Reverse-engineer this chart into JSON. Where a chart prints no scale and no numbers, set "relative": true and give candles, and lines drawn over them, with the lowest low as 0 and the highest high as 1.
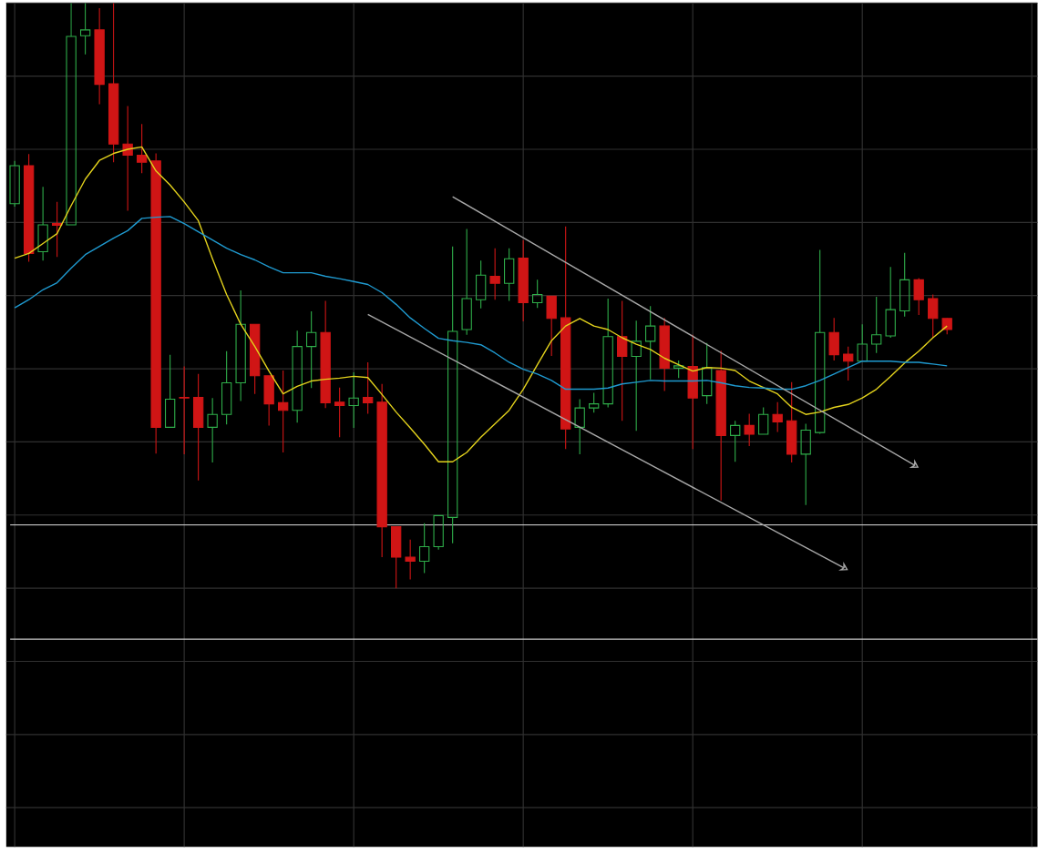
{
  "chart_data": {
    "type": "candlestick",
    "relative": true,
    "grid": true,
    "categories": [
      null,
      null,
      null,
      null,
      null,
      null,
      null,
      null,
      null,
      null,
      null,
      null,
      null,
      null,
      null,
      null,
      null,
      null,
      null,
      null,
      null,
      null,
      null,
      null,
      null,
      null,
      null,
      null,
      null,
      null,
      null,
      null,
      null,
      null,
      null,
      null,
      null,
      null,
      null,
      null,
      null,
      null,
      null,
      null,
      null,
      null,
      null,
      null,
      null,
      null,
      null,
      null,
      null,
      null,
      null,
      null,
      null,
      null,
      null,
      null,
      null,
      null,
      null,
      null,
      null,
      null,
      null
    ],
    "ohlc": [
      [
        0.657,
        0.73,
        0.652,
        0.722
      ],
      [
        0.722,
        0.742,
        0.558,
        0.572
      ],
      [
        0.575,
        0.686,
        0.56,
        0.621
      ],
      [
        0.623,
        0.66,
        0.566,
        0.62
      ],
      [
        0.621,
        1,
        0.621,
        0.943
      ],
      [
        0.944,
        1,
        0.912,
        0.954
      ],
      [
        0.954,
        0.991,
        0.827,
        0.861
      ],
      [
        0.862,
        1,
        0.728,
        0.759
      ],
      [
        0.759,
        0.824,
        0.645,
        0.74
      ],
      [
        0.74,
        0.793,
        0.709,
        0.728
      ],
      [
        0.73,
        0.743,
        0.23,
        0.275
      ],
      [
        0.275,
        0.399,
        0.275,
        0.323
      ],
      [
        0.326,
        0.379,
        0.229,
        0.325
      ],
      [
        0.326,
        0.366,
        0.184,
        0.275
      ],
      [
        0.275,
        0.325,
        0.215,
        0.297
      ],
      [
        0.297,
        0.405,
        0.28,
        0.351
      ],
      [
        0.351,
        0.509,
        0.32,
        0.451
      ],
      [
        0.451,
        0.451,
        0.332,
        0.363
      ],
      [
        0.363,
        0.363,
        0.278,
        0.315
      ],
      [
        0.317,
        0.372,
        0.232,
        0.304
      ],
      [
        0.304,
        0.44,
        0.283,
        0.413
      ],
      [
        0.413,
        0.473,
        0.342,
        0.437
      ],
      [
        0.437,
        0.491,
        0.308,
        0.317
      ],
      [
        0.318,
        0.343,
        0.258,
        0.312
      ],
      [
        0.312,
        0.369,
        0.274,
        0.325
      ],
      [
        0.326,
        0.386,
        0.298,
        0.317
      ],
      [
        0.318,
        0.349,
        0.053,
        0.105
      ],
      [
        0.105,
        0.105,
        0,
        0.053
      ],
      [
        0.053,
        0.083,
        0.015,
        0.046
      ],
      [
        0.046,
        0.111,
        0.026,
        0.071
      ],
      [
        0.071,
        0.124,
        0.066,
        0.124
      ],
      [
        0.121,
        0.584,
        0.077,
        0.439
      ],
      [
        0.442,
        0.614,
        0.433,
        0.495
      ],
      [
        0.493,
        0.56,
        0.478,
        0.535
      ],
      [
        0.533,
        0.581,
        0.493,
        0.521
      ],
      [
        0.521,
        0.581,
        0.491,
        0.563
      ],
      [
        0.564,
        0.595,
        0.456,
        0.488
      ],
      [
        0.488,
        0.527,
        0.479,
        0.502
      ],
      [
        0.499,
        0.499,
        0.397,
        0.461
      ],
      [
        0.462,
        0.618,
        0.238,
        0.272
      ],
      [
        0.275,
        0.323,
        0.229,
        0.308
      ],
      [
        0.308,
        0.334,
        0.3,
        0.315
      ],
      [
        0.315,
        0.495,
        0.309,
        0.43
      ],
      [
        0.43,
        0.491,
        0.286,
        0.396
      ],
      [
        0.396,
        0.457,
        0.269,
        0.422
      ],
      [
        0.422,
        0.482,
        0.357,
        0.448
      ],
      [
        0.448,
        0.462,
        0.337,
        0.376
      ],
      [
        0.376,
        0.389,
        0.359,
        0.38
      ],
      [
        0.379,
        0.433,
        0.238,
        0.325
      ],
      [
        0.329,
        0.419,
        0.315,
        0.377
      ],
      [
        0.372,
        0.406,
        0.15,
        0.261
      ],
      [
        0.261,
        0.286,
        0.216,
        0.278
      ],
      [
        0.278,
        0.298,
        0.243,
        0.263
      ],
      [
        0.263,
        0.309,
        0.263,
        0.297
      ],
      [
        0.297,
        0.318,
        0.267,
        0.284
      ],
      [
        0.286,
        0.352,
        0.215,
        0.229
      ],
      [
        0.229,
        0.281,
        0.142,
        0.27
      ],
      [
        0.266,
        0.578,
        0.264,
        0.437
      ],
      [
        0.437,
        0.462,
        0.389,
        0.399
      ],
      [
        0.4,
        0.413,
        0.355,
        0.388
      ],
      [
        0.388,
        0.451,
        0.388,
        0.417
      ],
      [
        0.417,
        0.498,
        0.402,
        0.433
      ],
      [
        0.431,
        0.549,
        0.428,
        0.476
      ],
      [
        0.474,
        0.573,
        0.464,
        0.527
      ],
      [
        0.527,
        0.53,
        0.467,
        0.493
      ],
      [
        0.495,
        0.502,
        0.428,
        0.461
      ],
      [
        0.461,
        0.462,
        0.434,
        0.442
      ]
    ],
    "colors": [
      "#2fae4a",
      "#d01515",
      "#2fae4a",
      "#d01515",
      "#2fae4a",
      "#2fae4a",
      "#d01515",
      "#d01515",
      "#d01515",
      "#d01515",
      "#d01515",
      "#2fae4a",
      "#d01515",
      "#d01515",
      "#2fae4a",
      "#2fae4a",
      "#2fae4a",
      "#d01515",
      "#d01515",
      "#d01515",
      "#2fae4a",
      "#2fae4a",
      "#d01515",
      "#d01515",
      "#2fae4a",
      "#d01515",
      "#d01515",
      "#d01515",
      "#d01515",
      "#2fae4a",
      "#2fae4a",
      "#2fae4a",
      "#2fae4a",
      "#2fae4a",
      "#d01515",
      "#2fae4a",
      "#d01515",
      "#2fae4a",
      "#d01515",
      "#d01515",
      "#2fae4a",
      "#2fae4a",
      "#2fae4a",
      "#d01515",
      "#2fae4a",
      "#2fae4a",
      "#d01515",
      "#2fae4a",
      "#d01515",
      "#2fae4a",
      "#d01515",
      "#2fae4a",
      "#d01515",
      "#2fae4a",
      "#d01515",
      "#d01515",
      "#2fae4a",
      "#2fae4a",
      "#d01515",
      "#d01515",
      "#2fae4a",
      "#2fae4a",
      "#2fae4a",
      "#2fae4a",
      "#d01515",
      "#d01515",
      "#d01515"
    ],
    "series": [
      {
        "type": "line",
        "color": "#e3d21c",
        "values": [
          0.564,
          0.572,
          0.589,
          0.606,
          0.654,
          0.699,
          0.731,
          0.743,
          0.75,
          0.754,
          0.713,
          0.689,
          0.66,
          0.628,
          0.563,
          0.502,
          0.451,
          0.413,
          0.371,
          0.332,
          0.345,
          0.354,
          0.357,
          0.359,
          0.362,
          0.36,
          0.331,
          0.301,
          0.274,
          0.246,
          0.216,
          0.216,
          0.232,
          0.258,
          0.281,
          0.304,
          0.34,
          0.382,
          0.423,
          0.448,
          0.461,
          0.448,
          0.442,
          0.428,
          0.417,
          0.408,
          0.393,
          0.382,
          0.371,
          0.377,
          0.376,
          0.372,
          0.354,
          0.343,
          0.332,
          0.309,
          0.297,
          0.301,
          0.309,
          0.314,
          0.325,
          0.34,
          0.362,
          0.385,
          0.405,
          0.428,
          0.448
        ]
      },
      {
        "type": "line",
        "color": "#1f9ad0",
        "values": [
          0.479,
          0.493,
          0.51,
          0.522,
          0.547,
          0.57,
          0.584,
          0.598,
          0.611,
          0.632,
          0.634,
          0.635,
          0.623,
          0.609,
          0.595,
          0.581,
          0.57,
          0.561,
          0.549,
          0.539,
          0.539,
          0.539,
          0.533,
          0.529,
          0.524,
          0.519,
          0.505,
          0.485,
          0.462,
          0.444,
          0.427,
          0.423,
          0.42,
          0.416,
          0.402,
          0.386,
          0.374,
          0.366,
          0.355,
          0.34,
          0.34,
          0.34,
          0.342,
          0.349,
          0.352,
          0.355,
          0.354,
          0.354,
          0.354,
          0.355,
          0.351,
          0.346,
          0.343,
          0.342,
          0.34,
          0.34,
          0.346,
          0.355,
          0.366,
          0.377,
          0.388,
          0.388,
          0.388,
          0.386,
          0.386,
          0.383,
          0.38
        ]
      },
      {
        "type": "line",
        "color": "#a8a8a8",
        "values": [
          null,
          null,
          null,
          null,
          null,
          null,
          null,
          null,
          null,
          null,
          null,
          null,
          null,
          null,
          null,
          null,
          null,
          null,
          null,
          null,
          null,
          null,
          null,
          null,
          null,
          null,
          null,
          null,
          null,
          null,
          null,
          0.669,
          null,
          null,
          null,
          null,
          null,
          null,
          null,
          null,
          null,
          null,
          null,
          null,
          null,
          null,
          null,
          null,
          null,
          null,
          null,
          null,
          null,
          null,
          null,
          null,
          null,
          null,
          null,
          null,
          null,
          null,
          null,
          null,
          0.206,
          null,
          null
        ]
      },
      {
        "type": "line",
        "color": "#a8a8a8",
        "values": [
          null,
          null,
          null,
          null,
          null,
          null,
          null,
          null,
          null,
          null,
          null,
          null,
          null,
          null,
          null,
          null,
          null,
          null,
          null,
          null,
          null,
          null,
          null,
          null,
          null,
          0.468,
          null,
          null,
          null,
          null,
          null,
          null,
          null,
          null,
          null,
          null,
          null,
          null,
          null,
          null,
          null,
          null,
          null,
          null,
          null,
          null,
          null,
          null,
          null,
          null,
          null,
          null,
          null,
          null,
          null,
          null,
          null,
          null,
          null,
          0.031,
          null,
          null,
          null,
          null,
          null,
          null,
          null
        ]
      }
    ],
    "ref_lines": [
      {
        "axis": "y",
        "value": 0.108,
        "color": "#c8c8c8"
      },
      {
        "axis": "y",
        "value": -0.087,
        "color": "#c8c8c8"
      }
    ]
  }
}
